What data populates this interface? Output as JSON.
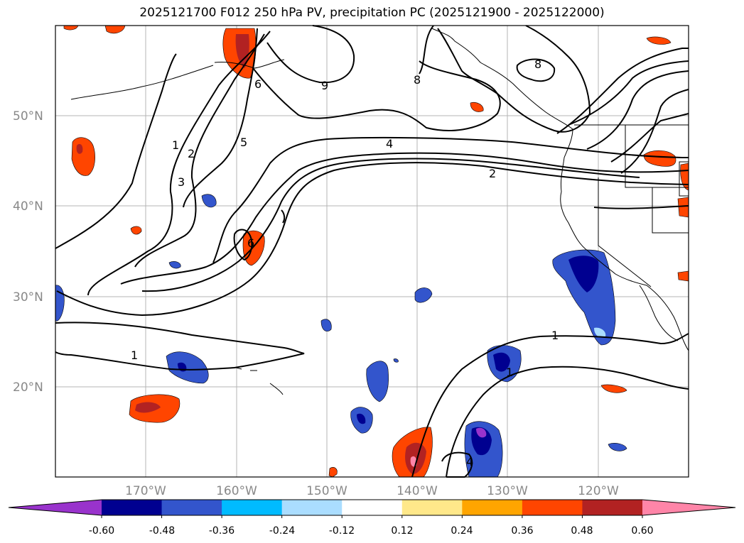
{
  "title": "2025121700 F012 250 hPa PV, precipitation PC (2025121900 - 2025122000)",
  "map": {
    "lat_labels": [
      "50°N",
      "40°N",
      "30°N",
      "20°N"
    ],
    "lon_labels": [
      "170°W",
      "160°W",
      "150°W",
      "140°W",
      "130°W",
      "120°W"
    ],
    "gridlines": true,
    "lat_range": [
      10,
      60
    ],
    "lon_range": [
      -180,
      -110
    ],
    "pv_contour_labels": [
      "1",
      "2",
      "3",
      "4",
      "5",
      "6",
      "8",
      "9",
      "1",
      "1",
      "2",
      "4",
      "6",
      "8",
      "1"
    ]
  },
  "colorbar": {
    "tick_labels": [
      "-0.60",
      "-0.48",
      "-0.36",
      "-0.24",
      "-0.12",
      "0.12",
      "0.24",
      "0.36",
      "0.48",
      "0.60"
    ],
    "colors": [
      "#9933cc",
      "#000090",
      "#3355cc",
      "#00bbff",
      "#aaddff",
      "#ffffff",
      "#ffe88a",
      "#ffa500",
      "#ff4500",
      "#b22222",
      "#ff85a8"
    ],
    "extend": "both"
  }
}
